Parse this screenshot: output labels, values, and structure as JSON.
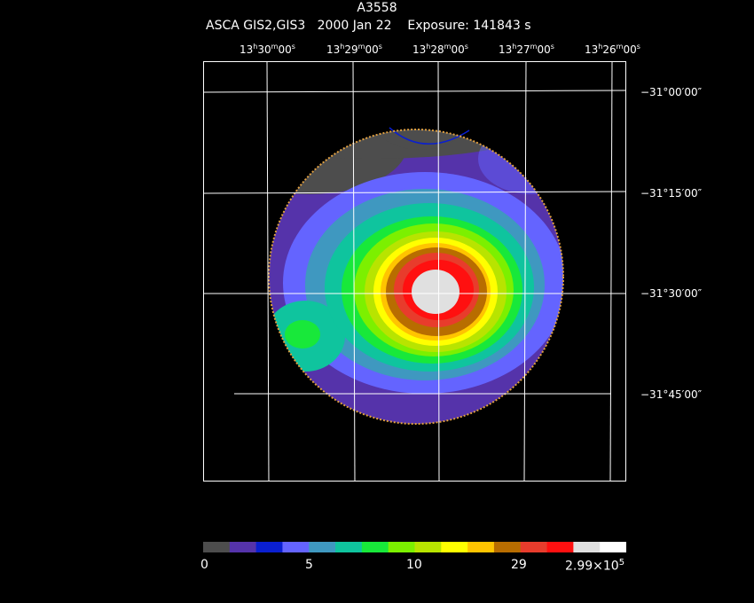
{
  "header": {
    "object": "A3558",
    "instrument": "ASCA GIS2,GIS3",
    "date": "2000 Jan 22",
    "exposure": "Exposure: 141843 s"
  },
  "ra_labels": [
    {
      "h": "13",
      "m": "30",
      "s": "00"
    },
    {
      "h": "13",
      "m": "29",
      "s": "00"
    },
    {
      "h": "13",
      "m": "28",
      "s": "00"
    },
    {
      "h": "13",
      "m": "27",
      "s": "00"
    },
    {
      "h": "13",
      "m": "26",
      "s": "00"
    }
  ],
  "dec_labels": [
    "−31°00′00″",
    "−31°15′00″",
    "−31°30′00″",
    "−31°45′00″"
  ],
  "colorbar": {
    "colors": [
      "#4d4d4d",
      "#5533aa",
      "#0a1fd0",
      "#6464ff",
      "#3f98c0",
      "#0fc49e",
      "#18e83a",
      "#7cf000",
      "#b8e400",
      "#ffff00",
      "#ffc400",
      "#b86d00",
      "#e83c2c",
      "#ff1010",
      "#e0e0e0",
      "#ffffff"
    ],
    "labels": [
      {
        "text": "0"
      },
      {
        "text": "5"
      },
      {
        "text": "10"
      },
      {
        "text": "29"
      },
      {
        "text": "2.99×10",
        "sup": "5"
      }
    ]
  }
}
